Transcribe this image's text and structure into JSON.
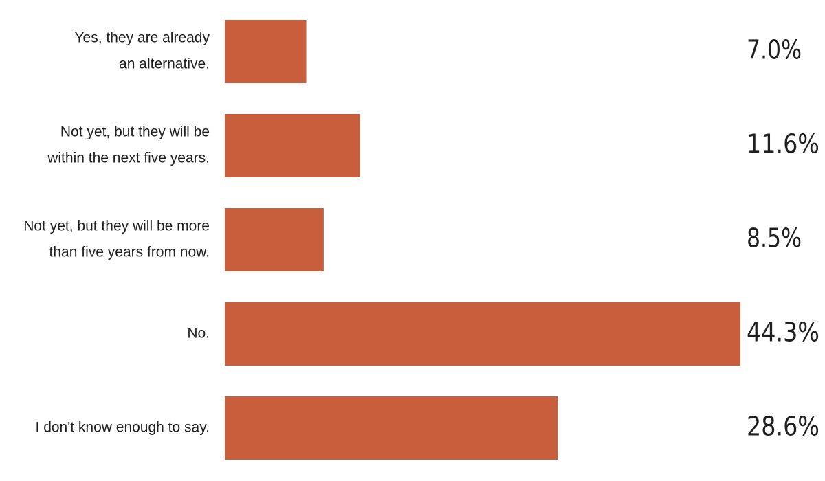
{
  "chart_data": {
    "type": "bar",
    "orientation": "horizontal",
    "categories": [
      [
        "Yes, they are already",
        "an alternative."
      ],
      [
        "Not yet, but they will be",
        "within the next five years."
      ],
      [
        "Not yet, but they will be more",
        "than five years from now."
      ],
      [
        "No."
      ],
      [
        "I don't know enough to say."
      ]
    ],
    "values": [
      7.0,
      11.6,
      8.5,
      44.3,
      28.6
    ],
    "value_labels": [
      "7.0%",
      "11.6%",
      "8.5%",
      "44.3%",
      "28.6%"
    ],
    "unit": "%",
    "title": "",
    "xlabel": "",
    "ylabel": "",
    "xlim": [
      0,
      44.3
    ],
    "grid": false,
    "legend": "none",
    "bar_color": "#C95E3D"
  }
}
